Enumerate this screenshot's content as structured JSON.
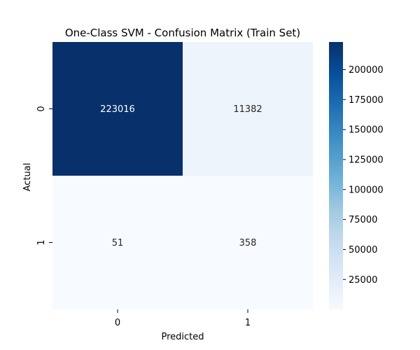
{
  "chart_data": {
    "type": "heatmap",
    "title": "One-Class SVM - Confusion Matrix (Train Set)",
    "xlabel": "Predicted",
    "ylabel": "Actual",
    "x_categories": [
      "0",
      "1"
    ],
    "y_categories": [
      "0",
      "1"
    ],
    "values": [
      [
        223016,
        11382
      ],
      [
        51,
        358
      ]
    ],
    "colormap": "Blues",
    "colorbar": {
      "min": 51,
      "max": 223016,
      "ticks": [
        25000,
        50000,
        75000,
        100000,
        125000,
        150000,
        175000,
        200000
      ]
    }
  }
}
